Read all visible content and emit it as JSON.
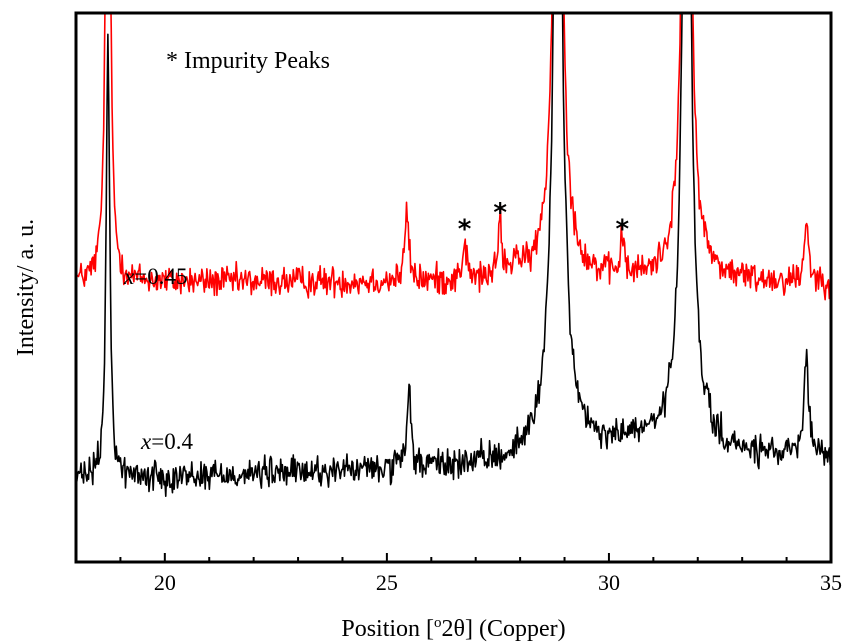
{
  "chart_data": {
    "type": "line",
    "xlabel": "Position [°2θ] (Copper)",
    "xlabel_prefix": "Position [",
    "xlabel_degree": "o",
    "xlabel_theta": "2θ] (Copper)",
    "ylabel": "Intensity/ a. u.",
    "xlim": [
      18,
      35
    ],
    "ylim": [
      0,
      100
    ],
    "xticks": [
      20,
      25,
      30,
      35
    ],
    "grid": false,
    "annotation_note": "* Impurity Peaks",
    "series": [
      {
        "name": "x=0.45",
        "label_var": "x",
        "label_value": "=0.45",
        "color": "#ff0000",
        "baseline": 51,
        "baseline_slope": 0,
        "noise": 1.4,
        "peaks": [
          {
            "x": 18.72,
            "h": 140,
            "w": 0.05
          },
          {
            "x": 25.45,
            "h": 13,
            "w": 0.05
          },
          {
            "x": 26.75,
            "h": 7,
            "w": 0.05
          },
          {
            "x": 27.55,
            "h": 10,
            "w": 0.05
          },
          {
            "x": 27.9,
            "h": 4,
            "w": 0.06
          },
          {
            "x": 28.85,
            "h": 150,
            "w": 0.09
          },
          {
            "x": 30.3,
            "h": 7,
            "w": 0.05
          },
          {
            "x": 31.75,
            "h": 150,
            "w": 0.09
          },
          {
            "x": 34.45,
            "h": 12,
            "w": 0.05
          }
        ],
        "broad": [
          {
            "x": 28.85,
            "h": 6,
            "w": 0.35
          },
          {
            "x": 31.75,
            "h": 5,
            "w": 0.35
          }
        ],
        "impurity_markers": [
          26.75,
          27.55,
          30.3
        ]
      },
      {
        "name": "x=0.4",
        "label_var": "x",
        "label_value": "=0.4",
        "color": "#000000",
        "baseline": 15,
        "baseline_slope": 0.25,
        "noise": 1.4,
        "peaks": [
          {
            "x": 18.72,
            "h": 78,
            "w": 0.05
          },
          {
            "x": 25.5,
            "h": 14,
            "w": 0.05
          },
          {
            "x": 28.85,
            "h": 150,
            "w": 0.1
          },
          {
            "x": 31.75,
            "h": 150,
            "w": 0.1
          },
          {
            "x": 34.45,
            "h": 19,
            "w": 0.05
          }
        ],
        "broad": [
          {
            "x": 28.85,
            "h": 12,
            "w": 0.4
          },
          {
            "x": 31.75,
            "h": 9,
            "w": 0.4
          },
          {
            "x": 30.5,
            "h": 3,
            "w": 0.6
          }
        ],
        "impurity_markers": []
      }
    ]
  }
}
